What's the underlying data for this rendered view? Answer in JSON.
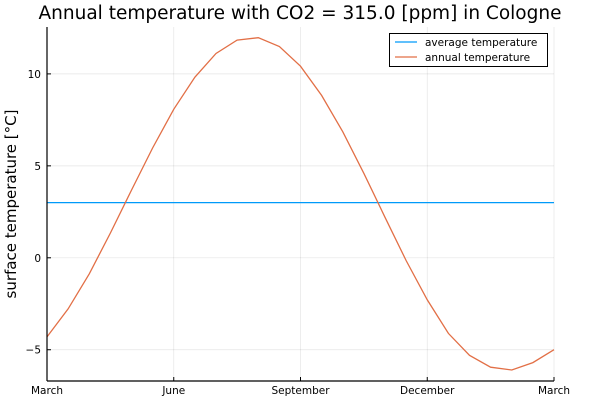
{
  "chart_data": {
    "type": "line",
    "title": "Annual temperature with CO2 = 315.0 [ppm] in Cologne",
    "xlabel": "",
    "ylabel": "surface temperature [°C]",
    "x_ticks": [
      "March",
      "June",
      "September",
      "December",
      "March"
    ],
    "y_ticks": [
      -5,
      0,
      5,
      10
    ],
    "ylim": [
      -6.7,
      12.55
    ],
    "grid": true,
    "legend_position": "top-right",
    "x": [
      "Mar 1",
      "Mar 16",
      "Apr 1",
      "Apr 16",
      "May 1",
      "May 16",
      "Jun 1",
      "Jun 16",
      "Jul 1",
      "Jul 16",
      "Aug 1",
      "Aug 16",
      "Sep 1",
      "Sep 16",
      "Oct 1",
      "Oct 16",
      "Nov 1",
      "Nov 16",
      "Dec 1",
      "Dec 16",
      "Jan 1",
      "Jan 16",
      "Feb 1",
      "Feb 16",
      "Mar 1"
    ],
    "series": [
      {
        "name": "average temperature",
        "color": "#009af9",
        "values": [
          3.0,
          3.0,
          3.0,
          3.0,
          3.0,
          3.0,
          3.0,
          3.0,
          3.0,
          3.0,
          3.0,
          3.0,
          3.0,
          3.0,
          3.0,
          3.0,
          3.0,
          3.0,
          3.0,
          3.0,
          3.0,
          3.0,
          3.0,
          3.0,
          3.0
        ]
      },
      {
        "name": "annual temperature",
        "color": "#e26f46",
        "values": [
          -4.3,
          -2.78,
          -0.87,
          1.35,
          3.68,
          5.97,
          8.08,
          9.82,
          11.11,
          11.84,
          11.97,
          11.49,
          10.42,
          8.83,
          6.85,
          4.59,
          2.2,
          -0.15,
          -2.29,
          -4.11,
          -5.3,
          -5.95,
          -6.1,
          -5.7,
          -5.0
        ]
      }
    ]
  }
}
